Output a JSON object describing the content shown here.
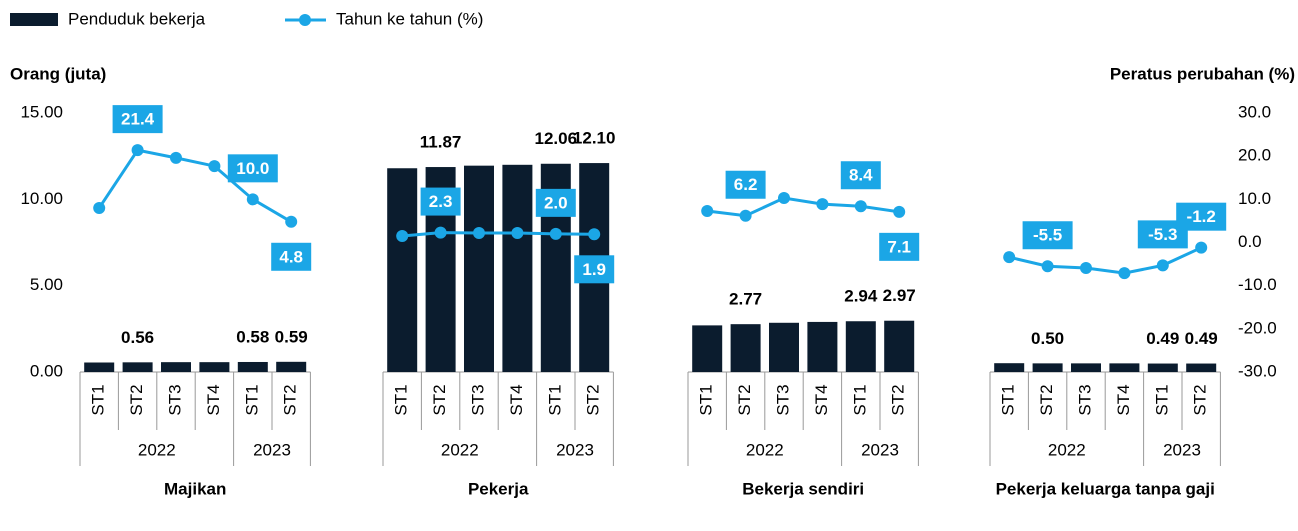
{
  "chart_data": {
    "type": "bar",
    "series": [
      {
        "name": "Penduduk bekerja",
        "color": "#0b1c2e",
        "type": "bar"
      },
      {
        "name": "Tahun ke tahun (%)",
        "color": "#1ba6e6",
        "type": "line",
        "axis": "y2"
      }
    ],
    "y_label": "Orang (juta)",
    "y2_label": "Peratus perubahan (%)",
    "ylim": [
      0,
      15
    ],
    "yticks": [
      {
        "value": 0,
        "label": "0.00"
      },
      {
        "value": 5,
        "label": "5.00"
      },
      {
        "value": 10,
        "label": "10.00"
      },
      {
        "value": 15,
        "label": "15.00"
      }
    ],
    "y2lim": [
      -30,
      30
    ],
    "y2ticks": [
      {
        "value": -30,
        "label": "-30.0"
      },
      {
        "value": -20,
        "label": "-20.0"
      },
      {
        "value": -10,
        "label": "-10.0"
      },
      {
        "value": 0,
        "label": "0.0"
      },
      {
        "value": 10,
        "label": "10.0"
      },
      {
        "value": 20,
        "label": "20.0"
      },
      {
        "value": 30,
        "label": "30.0"
      }
    ],
    "panels": [
      {
        "title": "Majikan",
        "categories": [
          "ST1",
          "ST2",
          "ST3",
          "ST4",
          "ST1",
          "ST2"
        ],
        "groups": [
          {
            "label": "2022",
            "span": 4
          },
          {
            "label": "2023",
            "span": 2
          }
        ],
        "values": [
          0.55,
          0.56,
          0.57,
          0.57,
          0.58,
          0.59
        ],
        "value_labels": [
          null,
          "0.56",
          null,
          null,
          "0.58",
          "0.59"
        ],
        "line_values": [
          8.0,
          21.4,
          19.6,
          17.7,
          10.0,
          4.8
        ],
        "line_value_labels": [
          null,
          "21.4",
          null,
          null,
          "10.0",
          "4.8"
        ]
      },
      {
        "title": "Pekerja",
        "categories": [
          "ST1",
          "ST2",
          "ST3",
          "ST4",
          "ST1",
          "ST2"
        ],
        "groups": [
          {
            "label": "2022",
            "span": 4
          },
          {
            "label": "2023",
            "span": 2
          }
        ],
        "values": [
          11.8,
          11.87,
          11.95,
          12.0,
          12.06,
          12.1
        ],
        "value_labels": [
          null,
          "11.87",
          null,
          null,
          "12.06",
          "12.10"
        ],
        "line_values": [
          1.5,
          2.3,
          2.2,
          2.2,
          2.0,
          1.9
        ],
        "line_value_labels": [
          null,
          "2.3",
          null,
          null,
          "2.0",
          "1.9"
        ]
      },
      {
        "title": "Bekerja sendiri",
        "categories": [
          "ST1",
          "ST2",
          "ST3",
          "ST4",
          "ST1",
          "ST2"
        ],
        "groups": [
          {
            "label": "2022",
            "span": 4
          },
          {
            "label": "2023",
            "span": 2
          }
        ],
        "values": [
          2.7,
          2.77,
          2.85,
          2.9,
          2.94,
          2.97
        ],
        "value_labels": [
          null,
          "2.77",
          null,
          null,
          "2.94",
          "2.97"
        ],
        "line_values": [
          7.3,
          6.2,
          10.3,
          8.9,
          8.4,
          7.1
        ],
        "line_value_labels": [
          null,
          "6.2",
          null,
          null,
          "8.4",
          "7.1"
        ]
      },
      {
        "title": "Pekerja keluarga tanpa gaji",
        "categories": [
          "ST1",
          "ST2",
          "ST3",
          "ST4",
          "ST1",
          "ST2"
        ],
        "groups": [
          {
            "label": "2022",
            "span": 4
          },
          {
            "label": "2023",
            "span": 2
          }
        ],
        "values": [
          0.51,
          0.5,
          0.5,
          0.5,
          0.49,
          0.49
        ],
        "value_labels": [
          null,
          "0.50",
          null,
          null,
          "0.49",
          "0.49"
        ],
        "line_values": [
          -3.4,
          -5.5,
          -5.9,
          -7.1,
          -5.3,
          -1.2
        ],
        "line_value_labels": [
          null,
          "-5.5",
          null,
          null,
          "-5.3",
          "-1.2"
        ]
      }
    ]
  }
}
